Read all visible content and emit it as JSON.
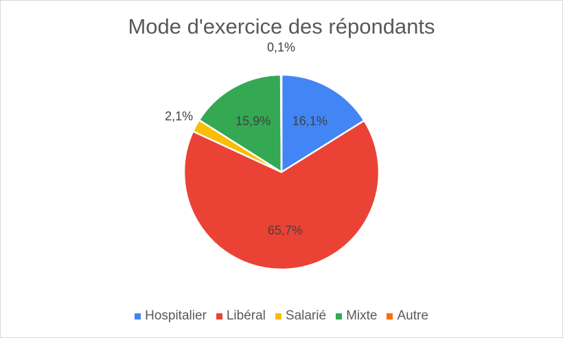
{
  "chart_data": {
    "type": "pie",
    "title": "Mode d'exercice des répondants",
    "categories": [
      "Hospitalier",
      "Libéral",
      "Salarié",
      "Mixte",
      "Autre"
    ],
    "values": [
      16.1,
      65.7,
      2.1,
      15.9,
      0.1
    ],
    "labels": [
      "16,1%",
      "65,7%",
      "2,1%",
      "15,9%",
      "0,1%"
    ],
    "colors": [
      "#4285F4",
      "#EA4335",
      "#FBBC04",
      "#34A853",
      "#FF6D01"
    ],
    "start_angle_deg": 0,
    "direction": "clockwise",
    "legend_position": "bottom"
  }
}
